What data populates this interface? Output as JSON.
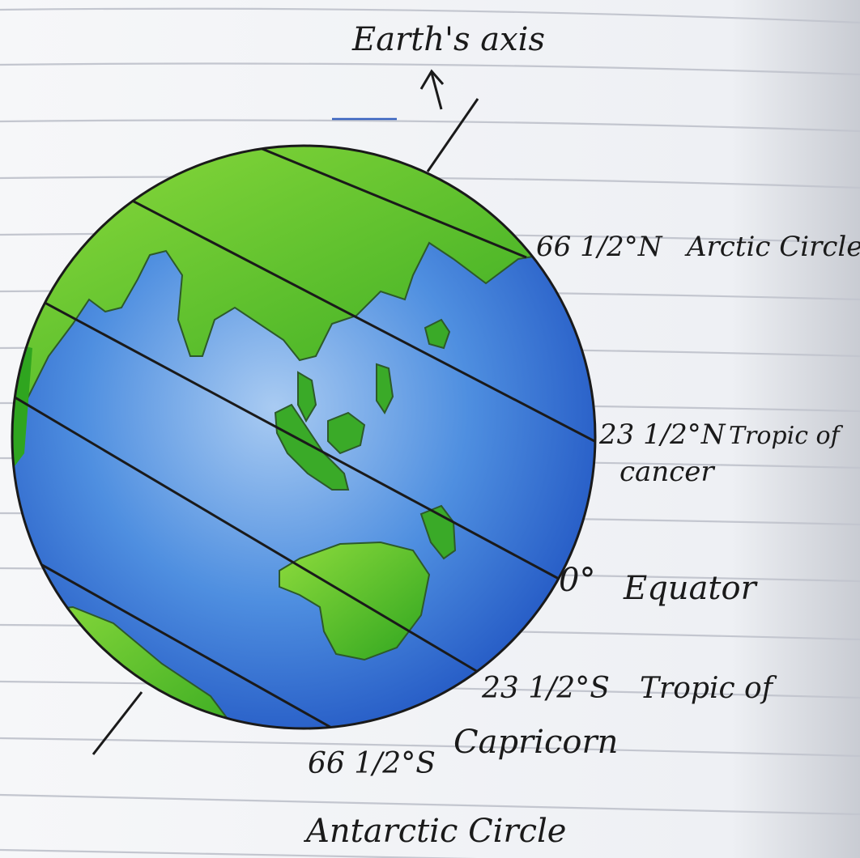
{
  "colors": {
    "paper": "#f4f5f8",
    "ruled_line": "#c3c6cf",
    "ink": "#1a1a1a",
    "ocean": "#2e6fd6",
    "ocean_light": "#9fc3f0",
    "land": "#3bb525",
    "land_light": "#8fdc3d"
  },
  "diagram": {
    "axis_label": "Earth's axis",
    "latitudes": [
      {
        "key": "arctic",
        "degree": "66 1/2°N",
        "name": "Arctic Circle",
        "name_line2": ""
      },
      {
        "key": "cancer",
        "degree": "23 1/2°N",
        "name": "Tropic of",
        "name_line2": "cancer"
      },
      {
        "key": "equator",
        "degree": "0°",
        "name": "Equator",
        "name_line2": ""
      },
      {
        "key": "capricorn",
        "degree": "23 1/2°S",
        "name": "Tropic of",
        "name_line2": "Capricorn"
      },
      {
        "key": "antarctic",
        "degree": "66 1/2°S",
        "name": "Antarctic Circle",
        "name_line2": ""
      }
    ]
  }
}
